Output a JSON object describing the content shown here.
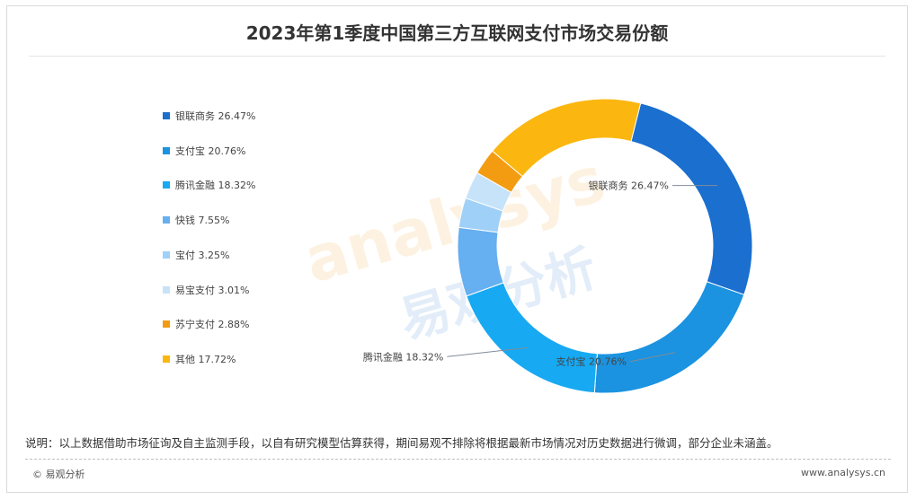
{
  "title": "2023年第1季度中国第三方互联网支付市场交易份额",
  "chart_data": {
    "type": "pie",
    "style": "donut",
    "title": "2023年第1季度中国第三方互联网支付市场交易份额",
    "legend_position": "left",
    "slices": [
      {
        "label": "银联商务",
        "value": 26.47,
        "display": "26.47%",
        "legend_text": "银联商务 26.47%",
        "color": "#1a6fcf",
        "callout": "银联商务 26.47%"
      },
      {
        "label": "支付宝",
        "value": 20.76,
        "display": "20.76%",
        "legend_text": "支付宝 20.76%",
        "color": "#1b93e0",
        "callout": "支付宝 20.76%"
      },
      {
        "label": "腾讯金融",
        "value": 18.32,
        "display": "18.32%",
        "legend_text": "腾讯金融 18.32%",
        "color": "#17a9f2",
        "callout": "腾讯金融 18.32%"
      },
      {
        "label": "快钱",
        "value": 7.55,
        "display": "7.55%",
        "legend_text": "快钱 7.55%",
        "color": "#66aff0",
        "callout": ""
      },
      {
        "label": "宝付",
        "value": 3.25,
        "display": "3.25%",
        "legend_text": "宝付 3.25%",
        "color": "#9fd0f7",
        "callout": ""
      },
      {
        "label": "易宝支付",
        "value": 3.01,
        "display": "3.01%",
        "legend_text": "易宝支付 3.01%",
        "color": "#c6e3fa",
        "callout": ""
      },
      {
        "label": "苏宁支付",
        "value": 2.88,
        "display": "2.88%",
        "legend_text": "苏宁支付 2.88%",
        "color": "#f39c12",
        "callout": ""
      },
      {
        "label": "其他",
        "value": 17.72,
        "display": "17.72%",
        "legend_text": "其他 17.72%",
        "color": "#fbb710",
        "callout": ""
      }
    ]
  },
  "note": "说明：以上数据借助市场征询及自主监测手段，以自有研究模型估算获得，期间易观不排除将根据最新市场情况对历史数据进行微调，部分企业未涵盖。",
  "footer": {
    "source": "© 易观分析",
    "website": "www.analysys.cn"
  },
  "watermark": {
    "latin": "analysys",
    "chinese": "易观分析"
  }
}
